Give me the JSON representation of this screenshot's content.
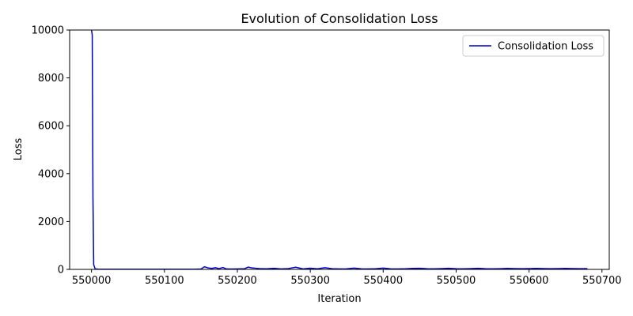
{
  "chart_data": {
    "type": "line",
    "title": "Evolution of Consolidation Loss",
    "xlabel": "Iteration",
    "ylabel": "Loss",
    "xlim": [
      549970,
      550710
    ],
    "ylim": [
      0,
      10000
    ],
    "xticks": [
      550000,
      550100,
      550200,
      550300,
      550400,
      550500,
      550600,
      550700
    ],
    "yticks": [
      0,
      2000,
      4000,
      6000,
      8000,
      10000
    ],
    "grid": false,
    "legend_position": "top-right",
    "series": [
      {
        "name": "Consolidation Loss",
        "color": "#0000cc",
        "x": [
          550000,
          550001,
          550002,
          550003,
          550005,
          550010,
          550020,
          550040,
          550060,
          550080,
          550100,
          550120,
          550140,
          550150,
          550155,
          550160,
          550165,
          550170,
          550175,
          550180,
          550185,
          550190,
          550200,
          550210,
          550215,
          550220,
          550230,
          550240,
          550250,
          550260,
          550270,
          550280,
          550290,
          550300,
          550310,
          550320,
          550330,
          550340,
          550350,
          550360,
          550370,
          550380,
          550390,
          550400,
          550410,
          550420,
          550430,
          550440,
          550450,
          550460,
          550470,
          550480,
          550490,
          550500,
          550510,
          550520,
          550530,
          550540,
          550550,
          550560,
          550570,
          550580,
          550590,
          550600,
          550610,
          550620,
          550630,
          550640,
          550650,
          550660,
          550670,
          550680
        ],
        "y": [
          10000,
          9800,
          3000,
          200,
          20,
          10,
          8,
          8,
          8,
          8,
          8,
          10,
          10,
          15,
          110,
          60,
          40,
          70,
          30,
          80,
          20,
          15,
          20,
          30,
          95,
          60,
          35,
          25,
          45,
          20,
          35,
          90,
          20,
          50,
          25,
          70,
          30,
          20,
          25,
          55,
          25,
          20,
          30,
          55,
          25,
          20,
          25,
          40,
          45,
          30,
          25,
          35,
          45,
          30,
          25,
          35,
          45,
          30,
          25,
          30,
          40,
          35,
          30,
          35,
          40,
          35,
          30,
          35,
          40,
          35,
          30,
          35
        ]
      }
    ]
  }
}
